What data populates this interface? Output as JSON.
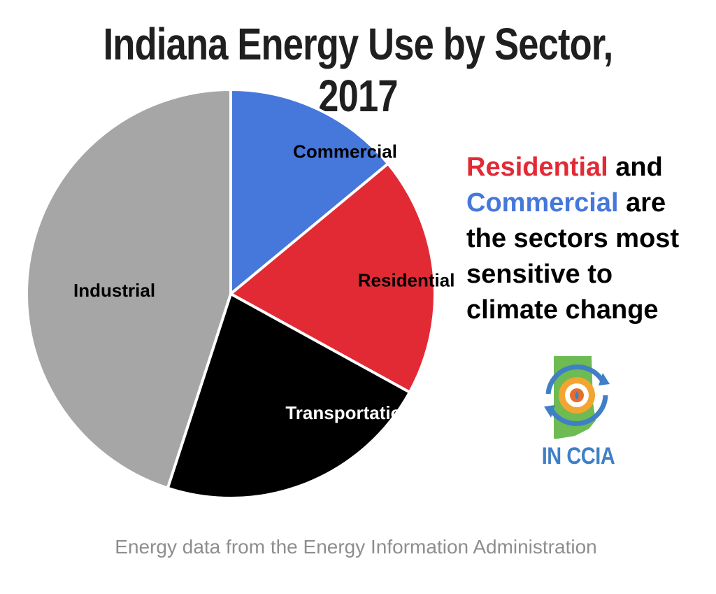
{
  "title": "Indiana Energy Use by Sector, 2017",
  "side_note": {
    "residential": "Residential",
    "and": " and",
    "commercial": "Commercial",
    "are": " are",
    "line3": "the sectors most",
    "line4": "sensitive to",
    "line5": "climate change"
  },
  "logo": {
    "text": "IN CCIA",
    "icon": "indiana-ccia-logo-icon"
  },
  "source": "Energy data from the Energy Information Administration",
  "colors": {
    "commercial": "#4677db",
    "residential": "#e22a35",
    "transportation": "#000000",
    "industrial": "#a6a6a6"
  },
  "chart_data": {
    "type": "pie",
    "title": "Indiana Energy Use by Sector, 2017",
    "slices": [
      {
        "label": "Commercial",
        "value": 14,
        "color": "#4677db",
        "label_color": "#000000"
      },
      {
        "label": "Residential",
        "value": 19,
        "color": "#e22a35",
        "label_color": "#000000"
      },
      {
        "label": "Transportation",
        "value": 22,
        "color": "#000000",
        "label_color": "#ffffff"
      },
      {
        "label": "Industrial",
        "value": 45,
        "color": "#a6a6a6",
        "label_color": "#000000"
      }
    ]
  }
}
